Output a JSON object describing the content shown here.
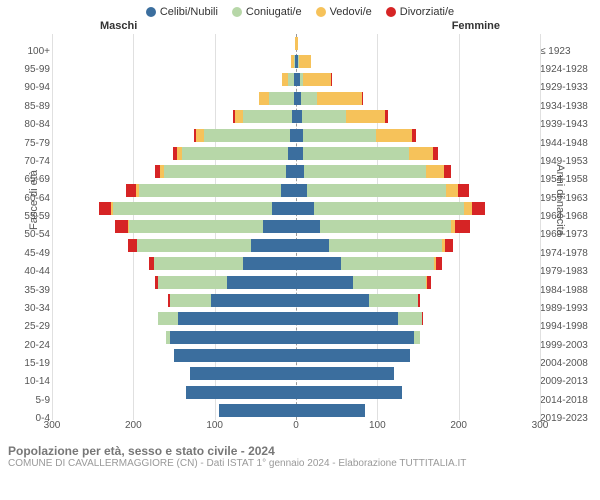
{
  "legend": [
    {
      "label": "Celibi/Nubili",
      "color": "#3b6e9e"
    },
    {
      "label": "Coniugati/e",
      "color": "#b7d7a8"
    },
    {
      "label": "Vedovi/e",
      "color": "#f6c25a"
    },
    {
      "label": "Divorziati/e",
      "color": "#d62425"
    }
  ],
  "header": {
    "male": "Maschi",
    "female": "Femmine"
  },
  "axes": {
    "left_title": "Fasce di età",
    "right_title": "Anni di nascita",
    "xlim": 300,
    "x_ticks": [
      300,
      200,
      100,
      0,
      100,
      200,
      300
    ],
    "grid_color": "#e0e0e0",
    "center_color": "#999999"
  },
  "age_labels": [
    "100+",
    "95-99",
    "90-94",
    "85-89",
    "80-84",
    "75-79",
    "70-74",
    "65-69",
    "60-64",
    "55-59",
    "50-54",
    "45-49",
    "40-44",
    "35-39",
    "30-34",
    "25-29",
    "20-24",
    "15-19",
    "10-14",
    "5-9",
    "0-4"
  ],
  "birth_labels": [
    "≤ 1923",
    "1924-1928",
    "1929-1933",
    "1934-1938",
    "1939-1943",
    "1944-1948",
    "1949-1953",
    "1954-1958",
    "1959-1963",
    "1964-1968",
    "1969-1973",
    "1974-1978",
    "1979-1983",
    "1984-1988",
    "1989-1993",
    "1994-1998",
    "1999-2003",
    "2004-2008",
    "2009-2013",
    "2014-2018",
    "2019-2023"
  ],
  "rows": [
    {
      "m": {
        "c": 0,
        "co": 0,
        "v": 1,
        "d": 0
      },
      "f": {
        "c": 0,
        "co": 0,
        "v": 3,
        "d": 0
      }
    },
    {
      "m": {
        "c": 1,
        "co": 2,
        "v": 3,
        "d": 0
      },
      "f": {
        "c": 3,
        "co": 1,
        "v": 14,
        "d": 0
      }
    },
    {
      "m": {
        "c": 2,
        "co": 8,
        "v": 7,
        "d": 0
      },
      "f": {
        "c": 5,
        "co": 3,
        "v": 35,
        "d": 1
      }
    },
    {
      "m": {
        "c": 3,
        "co": 30,
        "v": 12,
        "d": 1
      },
      "f": {
        "c": 6,
        "co": 20,
        "v": 55,
        "d": 2
      }
    },
    {
      "m": {
        "c": 5,
        "co": 60,
        "v": 10,
        "d": 2
      },
      "f": {
        "c": 7,
        "co": 55,
        "v": 48,
        "d": 3
      }
    },
    {
      "m": {
        "c": 8,
        "co": 105,
        "v": 10,
        "d": 3
      },
      "f": {
        "c": 8,
        "co": 90,
        "v": 45,
        "d": 5
      }
    },
    {
      "m": {
        "c": 10,
        "co": 130,
        "v": 6,
        "d": 5
      },
      "f": {
        "c": 9,
        "co": 130,
        "v": 30,
        "d": 6
      }
    },
    {
      "m": {
        "c": 12,
        "co": 150,
        "v": 5,
        "d": 6
      },
      "f": {
        "c": 10,
        "co": 150,
        "v": 22,
        "d": 8
      }
    },
    {
      "m": {
        "c": 18,
        "co": 175,
        "v": 4,
        "d": 12
      },
      "f": {
        "c": 14,
        "co": 170,
        "v": 15,
        "d": 14
      }
    },
    {
      "m": {
        "c": 30,
        "co": 195,
        "v": 3,
        "d": 14
      },
      "f": {
        "c": 22,
        "co": 185,
        "v": 10,
        "d": 15
      }
    },
    {
      "m": {
        "c": 40,
        "co": 165,
        "v": 2,
        "d": 16
      },
      "f": {
        "c": 30,
        "co": 160,
        "v": 6,
        "d": 18
      }
    },
    {
      "m": {
        "c": 55,
        "co": 140,
        "v": 1,
        "d": 10
      },
      "f": {
        "c": 40,
        "co": 140,
        "v": 3,
        "d": 10
      }
    },
    {
      "m": {
        "c": 65,
        "co": 110,
        "v": 0,
        "d": 6
      },
      "f": {
        "c": 55,
        "co": 115,
        "v": 2,
        "d": 7
      }
    },
    {
      "m": {
        "c": 85,
        "co": 85,
        "v": 0,
        "d": 4
      },
      "f": {
        "c": 70,
        "co": 90,
        "v": 1,
        "d": 5
      }
    },
    {
      "m": {
        "c": 105,
        "co": 50,
        "v": 0,
        "d": 2
      },
      "f": {
        "c": 90,
        "co": 60,
        "v": 0,
        "d": 3
      }
    },
    {
      "m": {
        "c": 145,
        "co": 25,
        "v": 0,
        "d": 0
      },
      "f": {
        "c": 125,
        "co": 30,
        "v": 0,
        "d": 1
      }
    },
    {
      "m": {
        "c": 155,
        "co": 5,
        "v": 0,
        "d": 0
      },
      "f": {
        "c": 145,
        "co": 8,
        "v": 0,
        "d": 0
      }
    },
    {
      "m": {
        "c": 150,
        "co": 0,
        "v": 0,
        "d": 0
      },
      "f": {
        "c": 140,
        "co": 0,
        "v": 0,
        "d": 0
      }
    },
    {
      "m": {
        "c": 130,
        "co": 0,
        "v": 0,
        "d": 0
      },
      "f": {
        "c": 120,
        "co": 0,
        "v": 0,
        "d": 0
      }
    },
    {
      "m": {
        "c": 135,
        "co": 0,
        "v": 0,
        "d": 0
      },
      "f": {
        "c": 130,
        "co": 0,
        "v": 0,
        "d": 0
      }
    },
    {
      "m": {
        "c": 95,
        "co": 0,
        "v": 0,
        "d": 0
      },
      "f": {
        "c": 85,
        "co": 0,
        "v": 0,
        "d": 0
      }
    }
  ],
  "footer": {
    "title": "Popolazione per età, sesso e stato civile - 2024",
    "sub": "COMUNE DI CAVALLERMAGGIORE (CN) - Dati ISTAT 1° gennaio 2024 - Elaborazione TUTTITALIA.IT"
  }
}
